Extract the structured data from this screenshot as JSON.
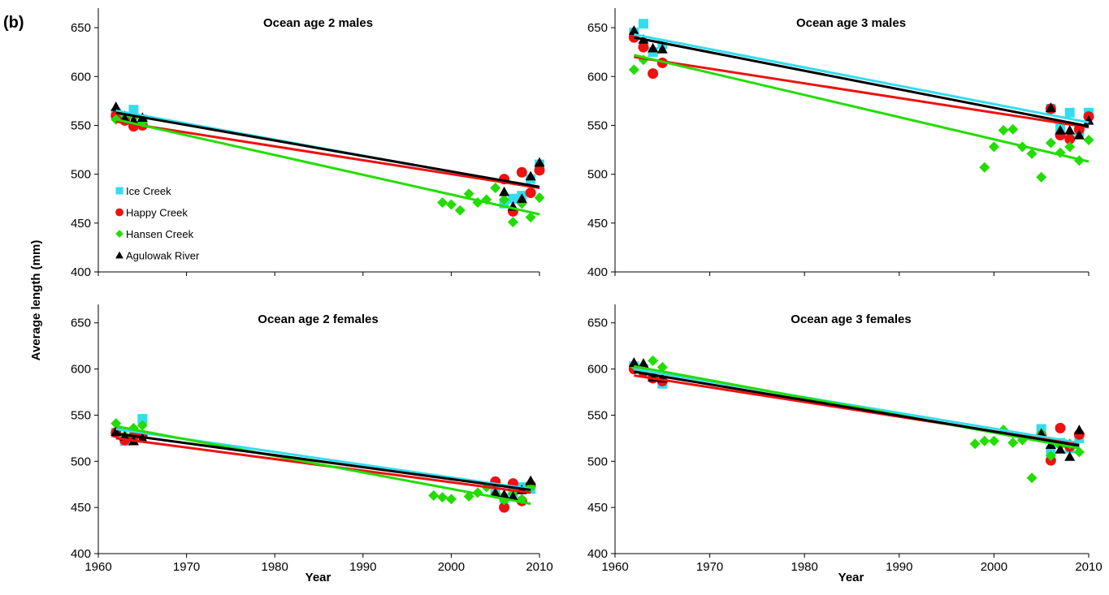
{
  "figure_label": "(b)",
  "colors": {
    "ice_creek": "#33ddee",
    "happy_creek": "#ee1111",
    "hansen_creek": "#22dd00",
    "agulowak_river": "#000000"
  },
  "chart_data": [
    {
      "type": "scatter",
      "title": "Ocean age 2 males",
      "xlabel": "",
      "ylabel": "",
      "xlim": [
        1960,
        2010
      ],
      "ylim": [
        400,
        670
      ],
      "yticks": [
        400,
        450,
        500,
        550,
        600,
        650
      ],
      "xticks": [],
      "grid": false,
      "legend": {
        "placement": "left-lower",
        "entries": [
          "Ice Creek",
          "Happy Creek",
          "Hansen Creek",
          "Agulowak River"
        ]
      },
      "series": [
        {
          "name": "Ice Creek",
          "marker": "square",
          "color": "#33ddee",
          "points": [
            [
              1962,
              562
            ],
            [
              1963,
              558
            ],
            [
              1964,
              566
            ],
            [
              1965,
              556
            ],
            [
              2006,
              470
            ],
            [
              2007,
              475
            ],
            [
              2008,
              478
            ],
            [
              2009,
              495
            ],
            [
              2010,
              510
            ]
          ],
          "trend": [
            [
              1962,
              565
            ],
            [
              2010,
              486
            ]
          ]
        },
        {
          "name": "Happy Creek",
          "marker": "circle",
          "color": "#ee1111",
          "points": [
            [
              1962,
              560
            ],
            [
              1963,
              555
            ],
            [
              1964,
              549
            ],
            [
              1965,
              550
            ],
            [
              2006,
              495
            ],
            [
              2007,
              462
            ],
            [
              2008,
              502
            ],
            [
              2009,
              481
            ],
            [
              2010,
              504
            ]
          ],
          "trend": [
            [
              1962,
              554
            ],
            [
              2010,
              486
            ]
          ]
        },
        {
          "name": "Hansen Creek",
          "marker": "diamond",
          "color": "#22dd00",
          "points": [
            [
              1962,
              556
            ],
            [
              1963,
              560
            ],
            [
              1964,
              558
            ],
            [
              1965,
              553
            ],
            [
              1999,
              471
            ],
            [
              2000,
              469
            ],
            [
              2001,
              463
            ],
            [
              2002,
              480
            ],
            [
              2003,
              471
            ],
            [
              2004,
              474
            ],
            [
              2005,
              486
            ],
            [
              2006,
              474
            ],
            [
              2007,
              451
            ],
            [
              2008,
              470
            ],
            [
              2009,
              456
            ],
            [
              2010,
              476
            ]
          ],
          "trend": [
            [
              1962,
              556
            ],
            [
              2010,
              459
            ]
          ]
        },
        {
          "name": "Agulowak River",
          "marker": "triangle",
          "color": "#000000",
          "points": [
            [
              1962,
              569
            ],
            [
              1963,
              557
            ],
            [
              1964,
              555
            ],
            [
              1965,
              558
            ],
            [
              2006,
              482
            ],
            [
              2007,
              467
            ],
            [
              2008,
              475
            ],
            [
              2009,
              498
            ],
            [
              2010,
              512
            ]
          ],
          "trend": [
            [
              1962,
              563
            ],
            [
              2010,
              487
            ]
          ]
        }
      ]
    },
    {
      "type": "scatter",
      "title": "Ocean age 3 males",
      "xlabel": "",
      "ylabel": "",
      "xlim": [
        1960,
        2010
      ],
      "ylim": [
        400,
        670
      ],
      "yticks": [
        400,
        450,
        500,
        550,
        600,
        650
      ],
      "xticks": [],
      "grid": false,
      "series": [
        {
          "name": "Ice Creek",
          "marker": "square",
          "color": "#33ddee",
          "points": [
            [
              1962,
              645
            ],
            [
              1963,
              654
            ],
            [
              1964,
              625
            ],
            [
              1965,
              633
            ],
            [
              2006,
              567
            ],
            [
              2007,
              547
            ],
            [
              2008,
              563
            ],
            [
              2009,
              543
            ],
            [
              2010,
              563
            ]
          ],
          "trend": [
            [
              1962,
              643
            ],
            [
              2010,
              553
            ]
          ]
        },
        {
          "name": "Happy Creek",
          "marker": "circle",
          "color": "#ee1111",
          "points": [
            [
              1962,
              640
            ],
            [
              1963,
              630
            ],
            [
              1964,
              603
            ],
            [
              1965,
              614
            ],
            [
              2006,
              567
            ],
            [
              2007,
              540
            ],
            [
              2008,
              536
            ],
            [
              2009,
              546
            ],
            [
              2010,
              559
            ]
          ],
          "trend": [
            [
              1962,
              620
            ],
            [
              2010,
              548
            ]
          ]
        },
        {
          "name": "Hansen Creek",
          "marker": "diamond",
          "color": "#22dd00",
          "points": [
            [
              1962,
              607
            ],
            [
              1963,
              617
            ],
            [
              1999,
              507
            ],
            [
              2000,
              528
            ],
            [
              2001,
              545
            ],
            [
              2002,
              546
            ],
            [
              2003,
              528
            ],
            [
              2004,
              521
            ],
            [
              2005,
              497
            ],
            [
              2006,
              532
            ],
            [
              2007,
              522
            ],
            [
              2008,
              528
            ],
            [
              2009,
              514
            ],
            [
              2010,
              535
            ]
          ],
          "trend": [
            [
              1962,
              622
            ],
            [
              2010,
              513
            ]
          ]
        },
        {
          "name": "Agulowak River",
          "marker": "triangle",
          "color": "#000000",
          "points": [
            [
              1962,
              647
            ],
            [
              1963,
              638
            ],
            [
              1964,
              629
            ],
            [
              1965,
              628
            ],
            [
              2006,
              568
            ],
            [
              2007,
              545
            ],
            [
              2008,
              545
            ],
            [
              2009,
              540
            ],
            [
              2010,
              555
            ]
          ],
          "trend": [
            [
              1962,
              640
            ],
            [
              2010,
              549
            ]
          ]
        }
      ]
    },
    {
      "type": "scatter",
      "title": "Ocean age 2 females",
      "xlabel": "Year",
      "ylabel": "",
      "xlim": [
        1960,
        2010
      ],
      "ylim": [
        400,
        670
      ],
      "yticks": [
        400,
        450,
        500,
        550,
        600,
        650
      ],
      "xticks": [
        1960,
        1970,
        1980,
        1990,
        2000,
        2010
      ],
      "grid": false,
      "series": [
        {
          "name": "Ice Creek",
          "marker": "square",
          "color": "#33ddee",
          "points": [
            [
              1962,
              531
            ],
            [
              1963,
              522
            ],
            [
              1964,
              526
            ],
            [
              1965,
              546
            ],
            [
              2005,
              468
            ],
            [
              2006,
              460
            ],
            [
              2007,
              466
            ],
            [
              2008,
              472
            ],
            [
              2009,
              470
            ]
          ],
          "trend": [
            [
              1962,
              535
            ],
            [
              2009,
              470
            ]
          ]
        },
        {
          "name": "Happy Creek",
          "marker": "circle",
          "color": "#ee1111",
          "points": [
            [
              1962,
              531
            ],
            [
              1963,
              523
            ],
            [
              1964,
              527
            ],
            [
              1965,
              528
            ],
            [
              2005,
              478
            ],
            [
              2006,
              450
            ],
            [
              2007,
              476
            ],
            [
              2008,
              457
            ],
            [
              2009,
              474
            ]
          ],
          "trend": [
            [
              1962,
              525
            ],
            [
              2009,
              466
            ]
          ]
        },
        {
          "name": "Hansen Creek",
          "marker": "diamond",
          "color": "#22dd00",
          "points": [
            [
              1962,
              541
            ],
            [
              1963,
              528
            ],
            [
              1964,
              536
            ],
            [
              1965,
              539
            ],
            [
              1998,
              463
            ],
            [
              1999,
              461
            ],
            [
              2000,
              459
            ],
            [
              2002,
              462
            ],
            [
              2003,
              466
            ],
            [
              2004,
              472
            ],
            [
              2005,
              465
            ],
            [
              2006,
              458
            ],
            [
              2007,
              465
            ],
            [
              2008,
              459
            ],
            [
              2009,
              472
            ]
          ],
          "trend": [
            [
              1962,
              538
            ],
            [
              2009,
              454
            ]
          ]
        },
        {
          "name": "Agulowak River",
          "marker": "triangle",
          "color": "#000000",
          "points": [
            [
              1962,
              532
            ],
            [
              1963,
              527
            ],
            [
              1964,
              522
            ],
            [
              1965,
              525
            ],
            [
              2005,
              466
            ],
            [
              2006,
              464
            ],
            [
              2007,
              462
            ],
            [
              2008,
              469
            ],
            [
              2009,
              479
            ]
          ],
          "trend": [
            [
              1962,
              530
            ],
            [
              2009,
              469
            ]
          ]
        }
      ]
    },
    {
      "type": "scatter",
      "title": "Ocean age 3 females",
      "xlabel": "Year",
      "ylabel": "",
      "xlim": [
        1960,
        2010
      ],
      "ylim": [
        400,
        670
      ],
      "yticks": [
        400,
        450,
        500,
        550,
        600,
        650
      ],
      "xticks": [
        1960,
        1970,
        1980,
        1990,
        2000,
        2010
      ],
      "grid": false,
      "series": [
        {
          "name": "Ice Creek",
          "marker": "square",
          "color": "#33ddee",
          "points": [
            [
              1962,
              603
            ],
            [
              1963,
              600
            ],
            [
              1964,
              592
            ],
            [
              1965,
              584
            ],
            [
              2005,
              535
            ],
            [
              2006,
              512
            ],
            [
              2007,
              520
            ],
            [
              2008,
              514
            ],
            [
              2009,
              525
            ]
          ],
          "trend": [
            [
              1962,
              600
            ],
            [
              2009,
              520
            ]
          ]
        },
        {
          "name": "Happy Creek",
          "marker": "circle",
          "color": "#ee1111",
          "points": [
            [
              1962,
              600
            ],
            [
              1963,
              597
            ],
            [
              1964,
              590
            ],
            [
              1965,
              587
            ],
            [
              2005,
              528
            ],
            [
              2006,
              501
            ],
            [
              2007,
              536
            ],
            [
              2008,
              516
            ],
            [
              2009,
              529
            ]
          ],
          "trend": [
            [
              1962,
              593
            ],
            [
              2009,
              518
            ]
          ]
        },
        {
          "name": "Hansen Creek",
          "marker": "diamond",
          "color": "#22dd00",
          "points": [
            [
              1962,
              604
            ],
            [
              1963,
              600
            ],
            [
              1964,
              609
            ],
            [
              1965,
              602
            ],
            [
              1998,
              519
            ],
            [
              1999,
              522
            ],
            [
              2000,
              522
            ],
            [
              2001,
              534
            ],
            [
              2002,
              520
            ],
            [
              2003,
              523
            ],
            [
              2004,
              482
            ],
            [
              2005,
              530
            ],
            [
              2006,
              506
            ],
            [
              2007,
              517
            ],
            [
              2008,
              519
            ],
            [
              2009,
              510
            ]
          ],
          "trend": [
            [
              1962,
              603
            ],
            [
              2009,
              514
            ]
          ]
        },
        {
          "name": "Agulowak River",
          "marker": "triangle",
          "color": "#000000",
          "points": [
            [
              1962,
              607
            ],
            [
              1963,
              606
            ],
            [
              1964,
              591
            ],
            [
              1965,
              590
            ],
            [
              2005,
              530
            ],
            [
              2006,
              518
            ],
            [
              2007,
              513
            ],
            [
              2008,
              505
            ],
            [
              2009,
              534
            ]
          ],
          "trend": [
            [
              1962,
              597
            ],
            [
              2009,
              517
            ]
          ]
        }
      ]
    }
  ],
  "shared_ylabel": "Average length (mm)"
}
